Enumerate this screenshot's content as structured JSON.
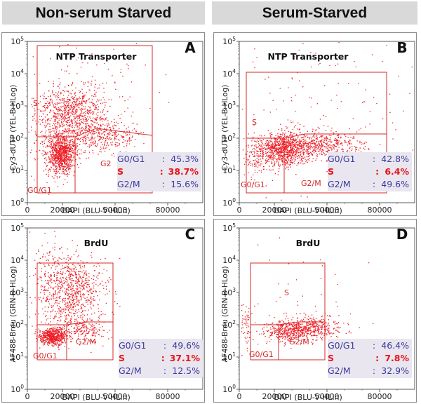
{
  "headers": {
    "left": "Non-serum Starved",
    "right": "Serum-Starved"
  },
  "colors": {
    "dots": "#ee1c24",
    "gates": "#d42a2a",
    "stats_text": "#3b3b9e",
    "stats_highlight": "#e8141b",
    "stats_bg": "#e9e6ef",
    "header_bg": "#d9d9d9"
  },
  "panels": [
    {
      "letter": "A",
      "title": "NTP Transporter",
      "ylabel": "Cy3-dUTP (YEL-B-HLog)",
      "xlabel": "DAPI (BLU-V-HLin)",
      "gate_labels": {
        "s": "S",
        "g2m": "G2",
        "g0g1": "G0/G1"
      },
      "stats": [
        {
          "label": "G0/G1",
          "value": "45.3%"
        },
        {
          "label": "S",
          "value": "38.7%"
        },
        {
          "label": "G2/M",
          "value": "15.6%"
        }
      ]
    },
    {
      "letter": "B",
      "title": "NTP Transporter",
      "ylabel": "Cy3-dUTP (YEL-B-HLog)",
      "xlabel": "DAPI (BLU-V-HLin)",
      "gate_labels": {
        "s": "S",
        "g2m": "G2/M",
        "g0g1": "G0/G1"
      },
      "stats": [
        {
          "label": "G0/G1",
          "value": "42.8%"
        },
        {
          "label": "S",
          "value": "6.4%"
        },
        {
          "label": "G2/M",
          "value": "49.6%"
        }
      ]
    },
    {
      "letter": "C",
      "title": "BrdU",
      "ylabel": "AF488-Brdu (GRN-B-HLog)",
      "xlabel": "DAPI (BLU-V-HLin)",
      "gate_labels": {
        "s": "",
        "g2m": "G2/M",
        "g0g1": "G0/G1"
      },
      "stats": [
        {
          "label": "G0/G1",
          "value": "49.6%"
        },
        {
          "label": "S",
          "value": "37.1%"
        },
        {
          "label": "G2/M",
          "value": "12.5%"
        }
      ]
    },
    {
      "letter": "D",
      "title": "BrdU",
      "ylabel": "AF488-Brdu (GRN-B-HLog)",
      "xlabel": "DAPI (BLU-V-HLin)",
      "gate_labels": {
        "s": "S",
        "g2m": "G2/M",
        "g0g1": "G0/G1"
      },
      "stats": [
        {
          "label": "G0/G1",
          "value": "46.4%"
        },
        {
          "label": "S",
          "value": "7.8%"
        },
        {
          "label": "G2/M",
          "value": "32.9%"
        }
      ]
    }
  ],
  "chart_data": [
    {
      "type": "scatter",
      "panel": "A",
      "title": "NTP Transporter",
      "xlabel": "DAPI (BLU-V-HLin)",
      "ylabel": "Cy3-dUTP (YEL-B-HLog)",
      "xlim": [
        0,
        100000
      ],
      "ylim": [
        1,
        100000
      ],
      "yscale": "log",
      "xticks": [
        "0",
        "20000",
        "50000",
        "80000"
      ],
      "yticks": [
        "10^0",
        "10^1",
        "10^2",
        "10^3",
        "10^4",
        "10^5"
      ],
      "gates": {
        "G0/G1": "45.3%",
        "S": "38.7%",
        "G2/M": "15.6%"
      }
    },
    {
      "type": "scatter",
      "panel": "B",
      "title": "NTP Transporter",
      "xlabel": "DAPI (BLU-V-HLin)",
      "ylabel": "Cy3-dUTP (YEL-B-HLog)",
      "xlim": [
        0,
        100000
      ],
      "ylim": [
        1,
        100000
      ],
      "yscale": "log",
      "xticks": [
        "0",
        "20000",
        "50000",
        "80000"
      ],
      "yticks": [
        "10^0",
        "10^1",
        "10^2",
        "10^3",
        "10^4",
        "10^5"
      ],
      "gates": {
        "G0/G1": "42.8%",
        "S": "6.4%",
        "G2/M": "49.6%"
      }
    },
    {
      "type": "scatter",
      "panel": "C",
      "title": "BrdU",
      "xlabel": "DAPI (BLU-V-HLin)",
      "ylabel": "AF488-Brdu (GRN-B-HLog)",
      "xlim": [
        0,
        100000
      ],
      "ylim": [
        1,
        100000
      ],
      "yscale": "log",
      "xticks": [
        "0",
        "20000",
        "50000",
        "80000"
      ],
      "yticks": [
        "10^0",
        "10^1",
        "10^2",
        "10^3",
        "10^4",
        "10^5"
      ],
      "gates": {
        "G0/G1": "49.6%",
        "S": "37.1%",
        "G2/M": "12.5%"
      }
    },
    {
      "type": "scatter",
      "panel": "D",
      "title": "BrdU",
      "xlabel": "DAPI (BLU-V-HLin)",
      "ylabel": "AF488-Brdu (GRN-B-HLog)",
      "xlim": [
        0,
        100000
      ],
      "ylim": [
        1,
        100000
      ],
      "yscale": "log",
      "xticks": [
        "0",
        "20000",
        "50000",
        "80000"
      ],
      "yticks": [
        "10^0",
        "10^1",
        "10^2",
        "10^3",
        "10^4",
        "10^5"
      ],
      "gates": {
        "G0/G1": "46.4%",
        "S": "7.8%",
        "G2/M": "32.9%"
      }
    }
  ]
}
